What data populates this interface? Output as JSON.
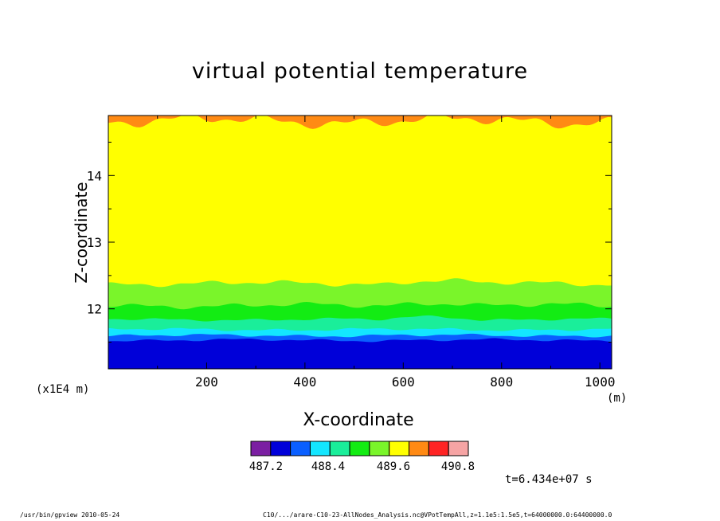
{
  "chart_data": {
    "type": "heatmap",
    "title": "virtual potential temperature",
    "xlabel": "X-coordinate",
    "ylabel": "Z-coordinate",
    "x_unit": "(m)",
    "y_unit": "(x1E4 m)",
    "xlim": [
      0,
      1024
    ],
    "ylim": [
      11.1,
      14.9
    ],
    "x_ticks": [
      200,
      400,
      600,
      800,
      1000
    ],
    "y_ticks": [
      12,
      13,
      14
    ],
    "colorbar": {
      "colors": [
        "#7b1fa2",
        "#0000d9",
        "#0a5fff",
        "#13e6ff",
        "#1aee9a",
        "#13ec13",
        "#7af52a",
        "#ffff00",
        "#ff8a14",
        "#ff2424",
        "#f6a4a4"
      ],
      "tick_labels": [
        "487.2",
        "488.4",
        "489.6",
        "490.8"
      ],
      "tick_values": [
        487.2,
        488.4,
        489.6,
        490.8
      ]
    },
    "contour_bands": [
      {
        "color": "#0000d9",
        "z_top": 11.53
      },
      {
        "color": "#0a5fff",
        "z_top": 11.6
      },
      {
        "color": "#13e6ff",
        "z_top": 11.69
      },
      {
        "color": "#1aee9a",
        "z_top": 11.84
      },
      {
        "color": "#13ec13",
        "z_top": 12.05
      },
      {
        "color": "#7af52a",
        "z_top": 12.38
      },
      {
        "color": "#ffff00",
        "z_top": 14.82
      },
      {
        "color": "#ff8a14",
        "z_top": 14.9
      }
    ],
    "grid": false
  },
  "annotations": {
    "time": "t=6.434e+07 s"
  },
  "footer": {
    "left": "/usr/bin/gpview  2010-05-24",
    "right": "C10/.../arare-C10-23-AllNodes_Analysis.nc@VPotTempAll,z=1.1e5:1.5e5,t=64000000.0:64400000.0"
  }
}
